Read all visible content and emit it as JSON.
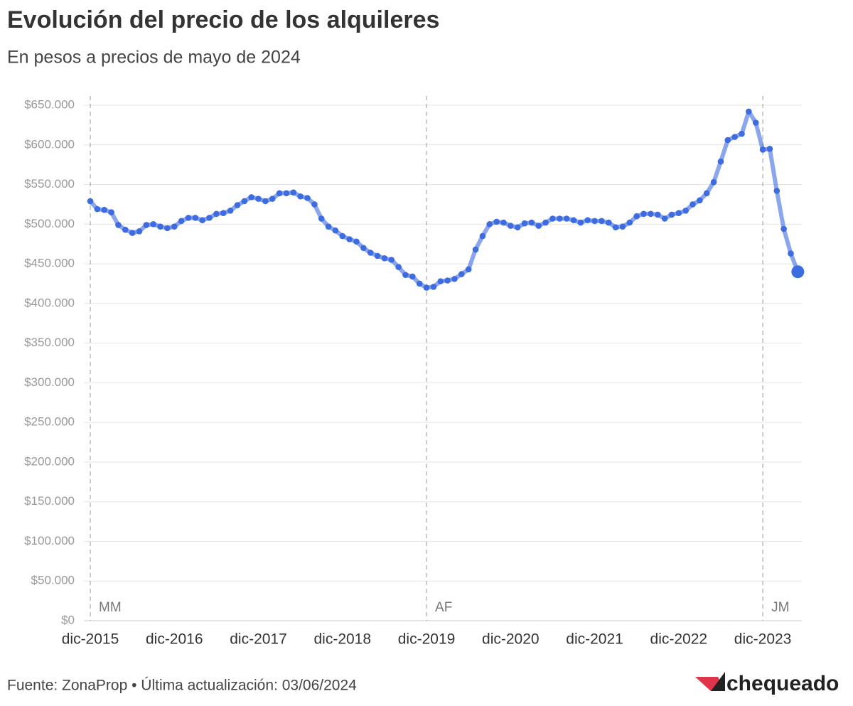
{
  "chart_data": {
    "type": "line",
    "title": "Evolución del precio de los alquileres",
    "subtitle": "En pesos a precios de mayo de 2024",
    "categories": [
      "dic-2015",
      null,
      null,
      null,
      null,
      null,
      null,
      null,
      null,
      null,
      null,
      null,
      "dic-2016",
      null,
      null,
      null,
      null,
      null,
      null,
      null,
      null,
      null,
      null,
      null,
      "dic-2017",
      null,
      null,
      null,
      null,
      null,
      null,
      null,
      null,
      null,
      null,
      null,
      "dic-2018",
      null,
      null,
      null,
      null,
      null,
      null,
      null,
      null,
      null,
      null,
      null,
      "dic-2019",
      null,
      null,
      null,
      null,
      null,
      null,
      null,
      null,
      null,
      null,
      null,
      "dic-2020",
      null,
      null,
      null,
      null,
      null,
      null,
      null,
      null,
      null,
      null,
      null,
      "dic-2021",
      null,
      null,
      null,
      null,
      null,
      null,
      null,
      null,
      null,
      null,
      null,
      "dic-2022",
      null,
      null,
      null,
      null,
      null,
      null,
      null,
      null,
      null,
      null,
      null,
      "dic-2023",
      null,
      null,
      null,
      null,
      null
    ],
    "values": [
      529000,
      519000,
      518000,
      515000,
      499000,
      493000,
      489000,
      491000,
      499000,
      500000,
      497000,
      495000,
      497000,
      504000,
      508000,
      508000,
      505000,
      508000,
      513000,
      514000,
      517000,
      524000,
      529000,
      534000,
      532000,
      529000,
      532000,
      539000,
      539000,
      540000,
      535000,
      533000,
      525000,
      507000,
      497000,
      492000,
      485000,
      481000,
      478000,
      470000,
      464000,
      460000,
      457000,
      455000,
      446000,
      436000,
      434000,
      425000,
      420000,
      421000,
      428000,
      429000,
      431000,
      437000,
      443000,
      468000,
      485000,
      500000,
      503000,
      502000,
      498000,
      496000,
      501000,
      502000,
      498000,
      502000,
      507000,
      507000,
      507000,
      505000,
      502000,
      505000,
      504000,
      504000,
      502000,
      496000,
      497000,
      502000,
      510000,
      513000,
      513000,
      512000,
      507000,
      512000,
      514000,
      517000,
      525000,
      530000,
      539000,
      553000,
      579000,
      606000,
      610000,
      614000,
      642000,
      628000,
      594000,
      595000,
      542000,
      494000,
      463000,
      440000
    ],
    "color": "#3d6be0",
    "highlight_last": true,
    "ylim": [
      0,
      650000
    ],
    "yticks": [
      {
        "value": 0,
        "label": "$0"
      },
      {
        "value": 50000,
        "label": "$50.000"
      },
      {
        "value": 100000,
        "label": "$100.000"
      },
      {
        "value": 150000,
        "label": "$150.000"
      },
      {
        "value": 200000,
        "label": "$200.000"
      },
      {
        "value": 250000,
        "label": "$250.000"
      },
      {
        "value": 300000,
        "label": "$300.000"
      },
      {
        "value": 350000,
        "label": "$350.000"
      },
      {
        "value": 400000,
        "label": "$400.000"
      },
      {
        "value": 450000,
        "label": "$450.000"
      },
      {
        "value": 500000,
        "label": "$500.000"
      },
      {
        "value": 550000,
        "label": "$550.000"
      },
      {
        "value": 600000,
        "label": "$600.000"
      },
      {
        "value": 650000,
        "label": "$650.000"
      }
    ],
    "grid": true,
    "annotations": [
      {
        "text": "MM",
        "category": "dic-2015"
      },
      {
        "text": "AF",
        "category": "dic-2019"
      },
      {
        "text": "JM",
        "category": "dic-2023"
      }
    ],
    "source": "Fuente: ZonaProp • Última actualización: 03/06/2024",
    "logo": "chequeado"
  }
}
